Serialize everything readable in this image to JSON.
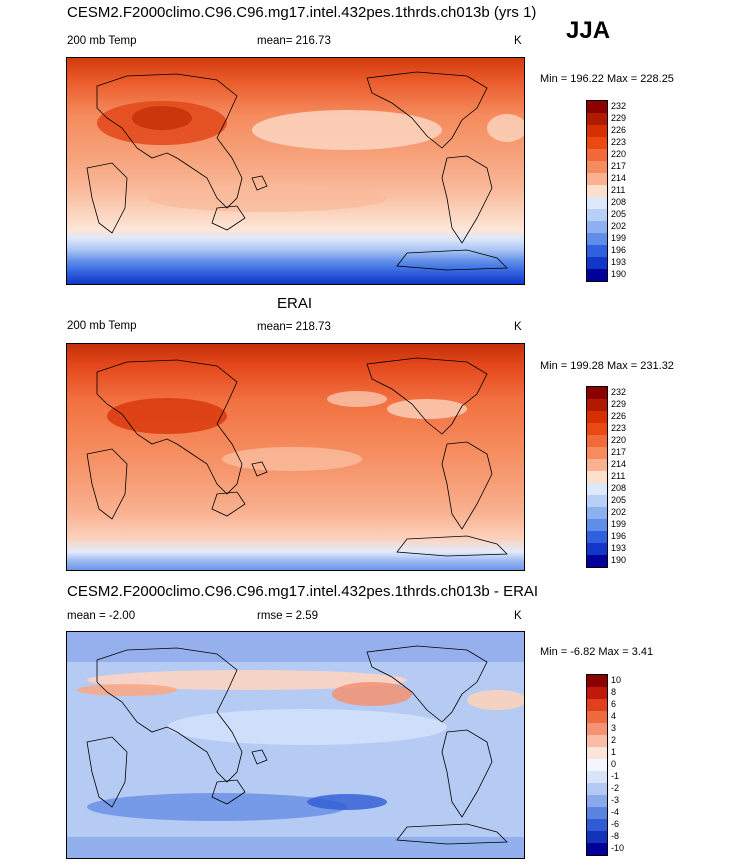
{
  "season": "JJA",
  "panels": [
    {
      "title": "CESM2.F2000climo.C96.C96.mg17.intel.432pes.1thrds.ch013b (yrs 1)",
      "left_label": "200 mb Temp",
      "center_label": "mean= 216.73",
      "units": "K",
      "minmax": "Min = 196.22 Max = 228.25",
      "colorbar": {
        "labels": [
          "232",
          "229",
          "226",
          "223",
          "220",
          "217",
          "214",
          "211",
          "208",
          "205",
          "202",
          "199",
          "196",
          "193",
          "190"
        ],
        "colors": [
          "#8b0000",
          "#b01a00",
          "#d73000",
          "#ea4a12",
          "#f26a3a",
          "#f68b5e",
          "#f9b192",
          "#fde0cc",
          "#dfe8fb",
          "#b8cff6",
          "#8fb0f0",
          "#5f8ee8",
          "#2f60de",
          "#1236c8",
          "#00009a"
        ]
      }
    },
    {
      "title": "ERAI",
      "left_label": "200 mb Temp",
      "center_label": "mean= 218.73",
      "units": "K",
      "minmax": "Min = 199.28 Max = 231.32",
      "colorbar": {
        "labels": [
          "232",
          "229",
          "226",
          "223",
          "220",
          "217",
          "214",
          "211",
          "208",
          "205",
          "202",
          "199",
          "196",
          "193",
          "190"
        ],
        "colors": [
          "#8b0000",
          "#b01a00",
          "#d73000",
          "#ea4a12",
          "#f26a3a",
          "#f68b5e",
          "#f9b192",
          "#fde0cc",
          "#dfe8fb",
          "#b8cff6",
          "#8fb0f0",
          "#5f8ee8",
          "#2f60de",
          "#1236c8",
          "#00009a"
        ]
      }
    },
    {
      "title": "CESM2.F2000climo.C96.C96.mg17.intel.432pes.1thrds.ch013b - ERAI",
      "left_label": "mean =  -2.00",
      "center_label": "rmse =   2.59",
      "units": "K",
      "minmax": "Min =  -6.82 Max =   3.41",
      "colorbar": {
        "labels": [
          "10",
          "8",
          "6",
          "4",
          "3",
          "2",
          "1",
          "0",
          "-1",
          "-2",
          "-3",
          "-4",
          "-6",
          "-8",
          "-10"
        ],
        "colors": [
          "#8b0000",
          "#c0180a",
          "#e0401c",
          "#f06a40",
          "#f59272",
          "#f9bca4",
          "#fde4d8",
          "#f3f6fe",
          "#d9e4fb",
          "#b3c9f4",
          "#8aa9ec",
          "#5b84e1",
          "#2f5bd4",
          "#1334b8",
          "#00009a"
        ]
      }
    }
  ]
}
